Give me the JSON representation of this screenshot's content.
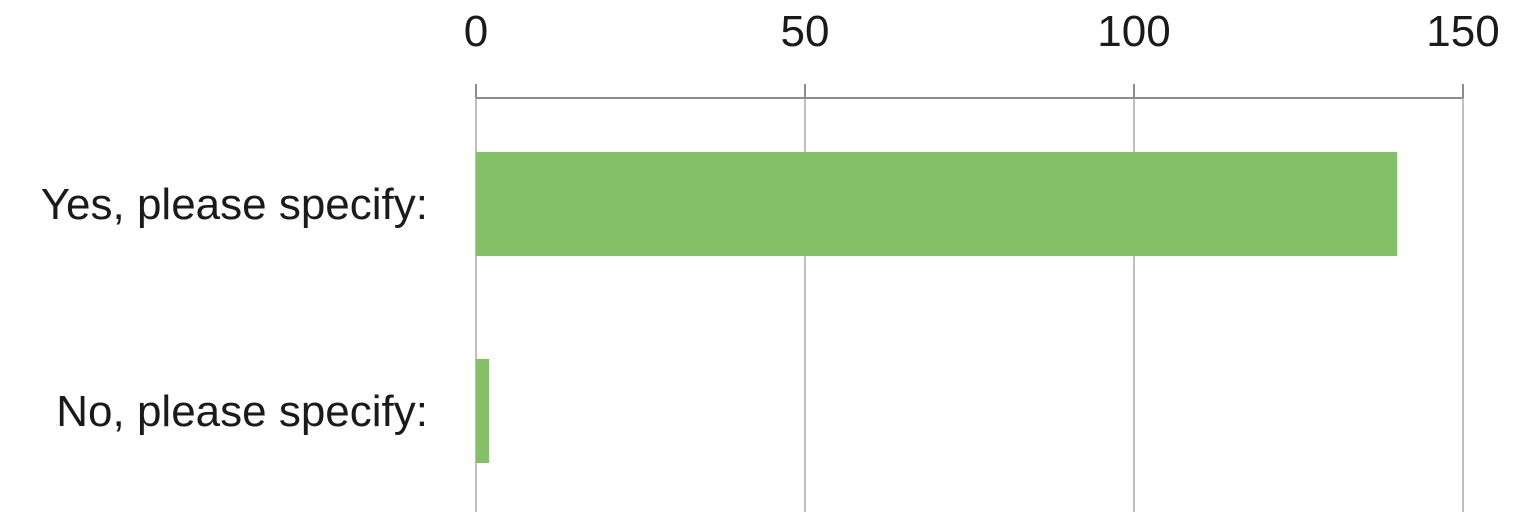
{
  "chart_data": {
    "type": "bar",
    "orientation": "horizontal",
    "categories": [
      "Yes, please specify:",
      "No, please specify:"
    ],
    "series": [
      {
        "values": [
          140,
          2
        ]
      }
    ],
    "xlim": [
      0,
      150
    ],
    "x_ticks": [
      0,
      50,
      100,
      150
    ],
    "x_axis_position": "top",
    "grid": true,
    "legend": "none",
    "title": "",
    "xlabel": "",
    "ylabel": "",
    "colors": {
      "bar": "#84c066",
      "gridline": "#bfbfbf",
      "axis": "#8c8c8c",
      "text": "#1a1a1a"
    }
  }
}
